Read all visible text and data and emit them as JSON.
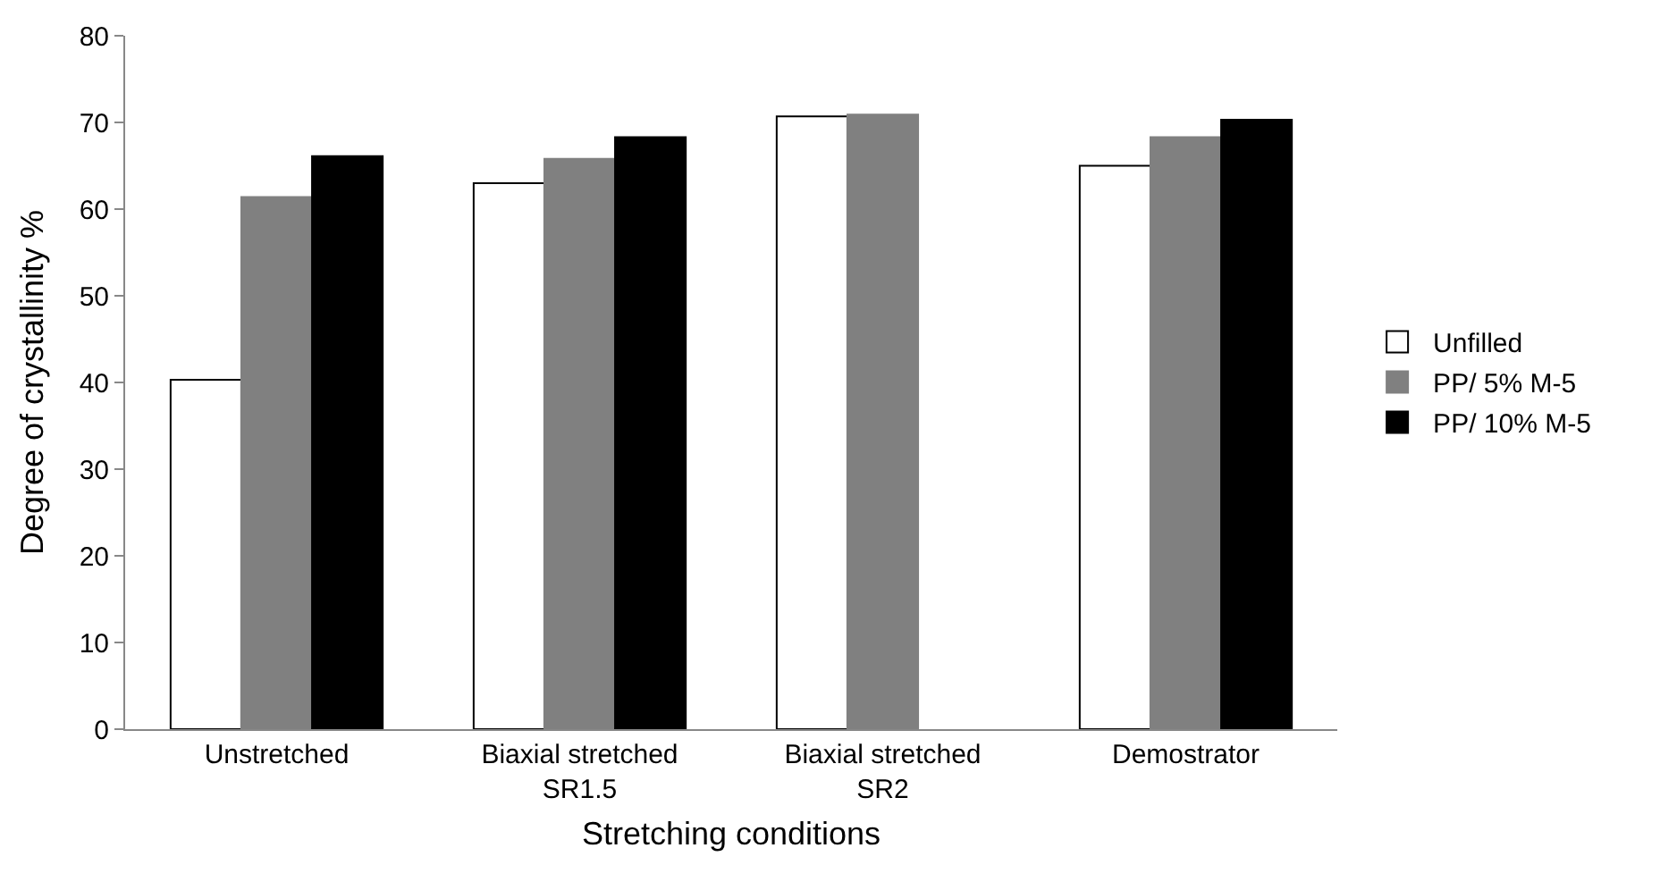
{
  "chart_data": {
    "type": "bar",
    "xlabel": "Stretching conditions",
    "ylabel": "Degree of crystallinity %",
    "categories": [
      "Unstretched",
      "Biaxial stretched SR1.5",
      "Biaxial stretched SR2",
      "Demostrator"
    ],
    "series": [
      {
        "name": "Unfilled",
        "color": "#ffffff",
        "values": [
          40.3,
          63.0,
          70.7,
          65.0
        ]
      },
      {
        "name": "PP/ 5% M-5",
        "color": "#808080",
        "values": [
          61.4,
          65.8,
          70.9,
          68.3
        ]
      },
      {
        "name": "PP/ 10% M-5",
        "color": "#000000",
        "values": [
          66.1,
          68.3,
          null,
          70.3
        ]
      }
    ],
    "ylim": [
      0,
      80
    ],
    "yticks": [
      0,
      10,
      20,
      30,
      40,
      50,
      60,
      70,
      80
    ],
    "grid": false,
    "legend": "right"
  }
}
